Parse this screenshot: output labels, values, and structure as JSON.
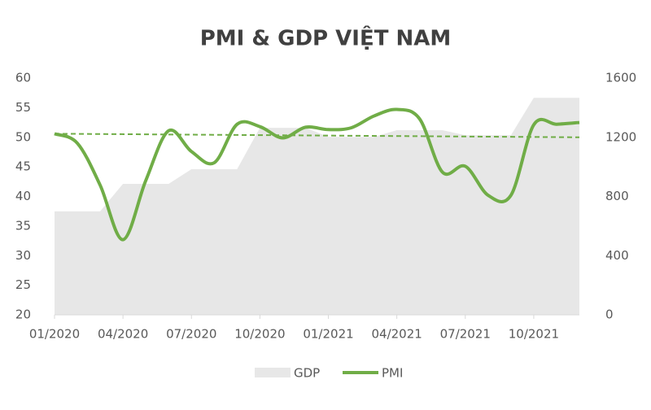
{
  "chart_data": {
    "type": "line",
    "title": "PMI & GDP VIỆT NAM",
    "categories": [
      "01/2020",
      null,
      null,
      "04/2020",
      null,
      null,
      "07/2020",
      null,
      null,
      "10/2020",
      null,
      null,
      "01/2021",
      null,
      null,
      "04/2021",
      null,
      null,
      "07/2021",
      null,
      null,
      "10/2021",
      null,
      null
    ],
    "series": [
      {
        "name": "GDP",
        "type": "area",
        "axis": "y2",
        "color": "#e7e7e7",
        "values": [
          700,
          700,
          700,
          885,
          885,
          885,
          984,
          984,
          984,
          1264,
          1264,
          1264,
          1203,
          1203,
          1203,
          1248,
          1248,
          1248,
          1214,
          1214,
          1214,
          1467,
          1467,
          1467
        ]
      },
      {
        "name": "PMI",
        "type": "line",
        "color": "#70ad47",
        "values": [
          50.6,
          49.0,
          41.9,
          32.7,
          42.7,
          51.1,
          47.6,
          45.7,
          52.2,
          51.8,
          49.9,
          51.7,
          51.3,
          51.6,
          53.6,
          54.7,
          53.1,
          44.1,
          45.1,
          40.2,
          40.2,
          52.1,
          52.2,
          52.5
        ]
      }
    ],
    "trendline": {
      "color": "#70ad47",
      "values": [
        50.6,
        50.0
      ]
    },
    "ylim": [
      20,
      60
    ],
    "yticks": [
      20,
      25,
      30,
      35,
      40,
      45,
      50,
      55,
      60
    ],
    "y2lim": [
      0,
      1600
    ],
    "y2ticks": [
      0,
      400,
      800,
      1200,
      1600
    ],
    "legend": "bottom"
  }
}
